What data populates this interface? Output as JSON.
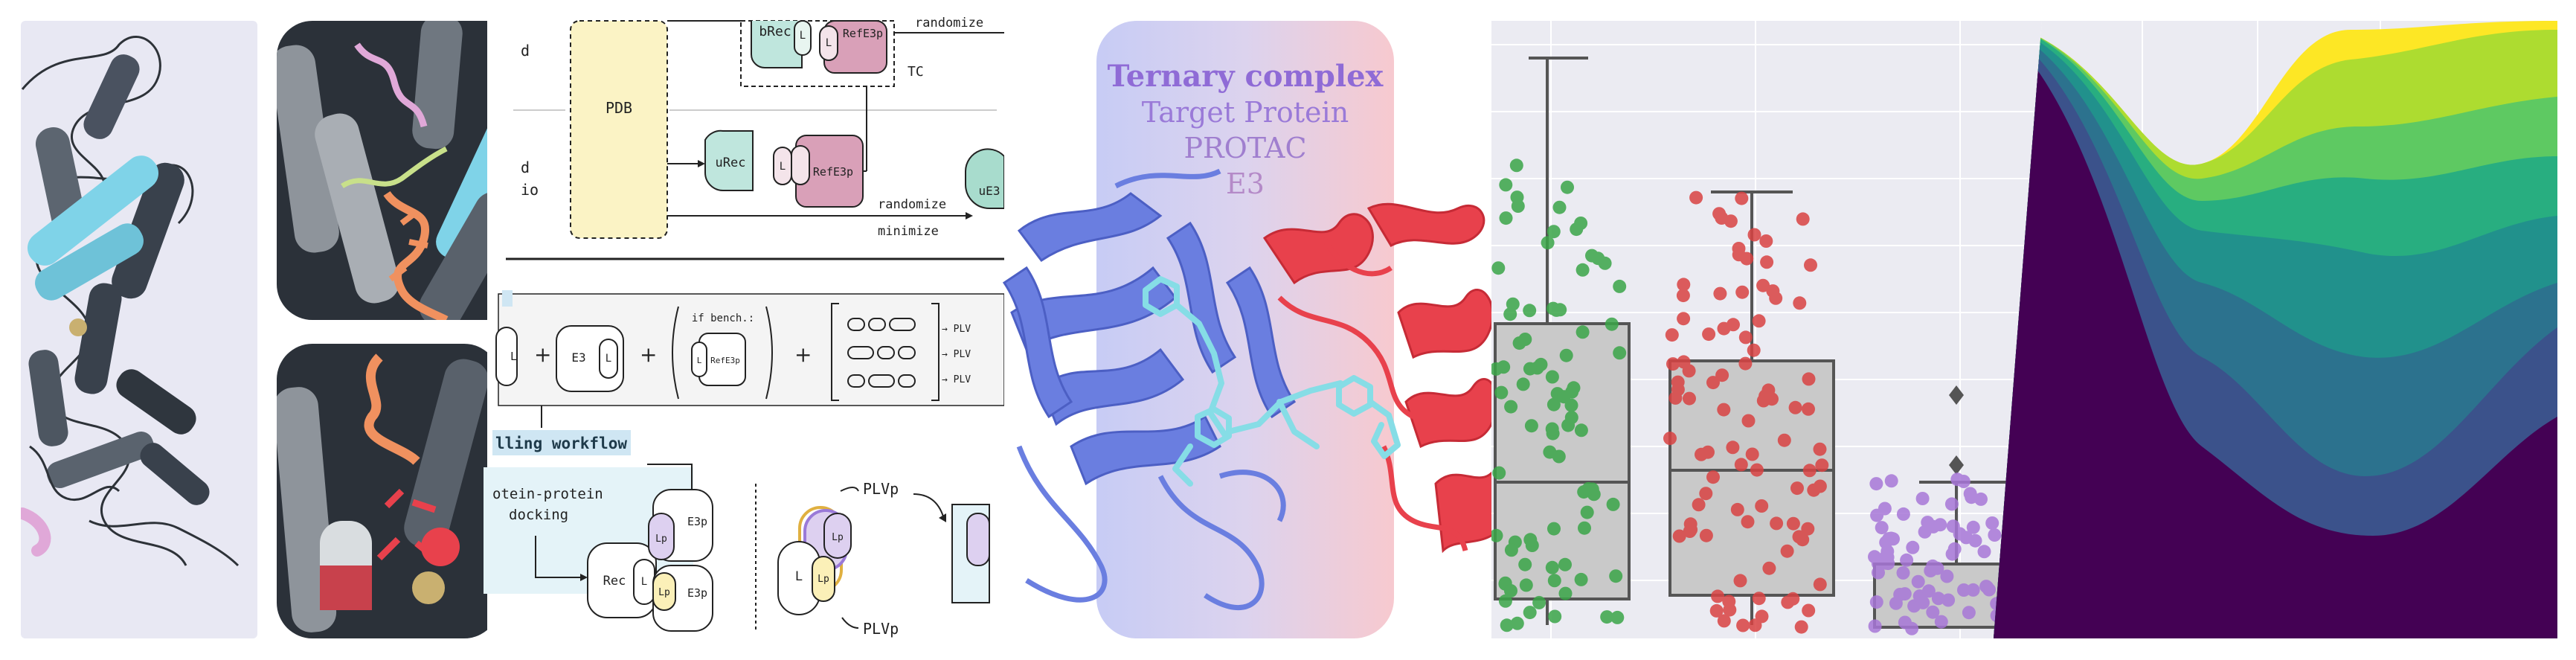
{
  "panel_workflow": {
    "pdb": "PDB",
    "brec": "bRec",
    "refe3p": "RefE3p",
    "l": "L",
    "randomize": "randomize",
    "tc": "TC",
    "urec": "uRec",
    "ue3": "uE3",
    "minimize": "minimize",
    "partial_d": "d",
    "partial_io": "io",
    "e3": "E3",
    "plus": "+",
    "if_bench": "if bench.:",
    "plv": "PLV",
    "arrow_plv": "→ PLV",
    "modelling_workflow": "lling workflow",
    "pp_docking_1": "otein-protein",
    "pp_docking_2": "docking",
    "rec": "Rec",
    "e3p": "E3p",
    "lp": "Lp",
    "plvp": "PLVp"
  },
  "panel_ternary": {
    "title": "Ternary complex",
    "target_protein": "Target Protein",
    "protac": "PROTAC",
    "e3": "E3",
    "colors": {
      "title": "#8f6bd6",
      "target": "#9a7ad8",
      "protac": "#a07fcf",
      "e3": "#b48ac8",
      "target_ribbon": "#6a7ee0",
      "e3_ribbon": "#e8414c",
      "ligand": "#86dde6"
    }
  },
  "panel_boxplot": {
    "colors": {
      "green": "#3aa548",
      "red": "#d94343",
      "purple": "#a877d8",
      "box": "#c9c9c9",
      "bg": "#ebebf2"
    }
  },
  "panel_stream": {
    "colors": [
      "#440154",
      "#3b528b",
      "#2c728e",
      "#21918c",
      "#28ae80",
      "#5ec962",
      "#addc30",
      "#fde725"
    ]
  }
}
